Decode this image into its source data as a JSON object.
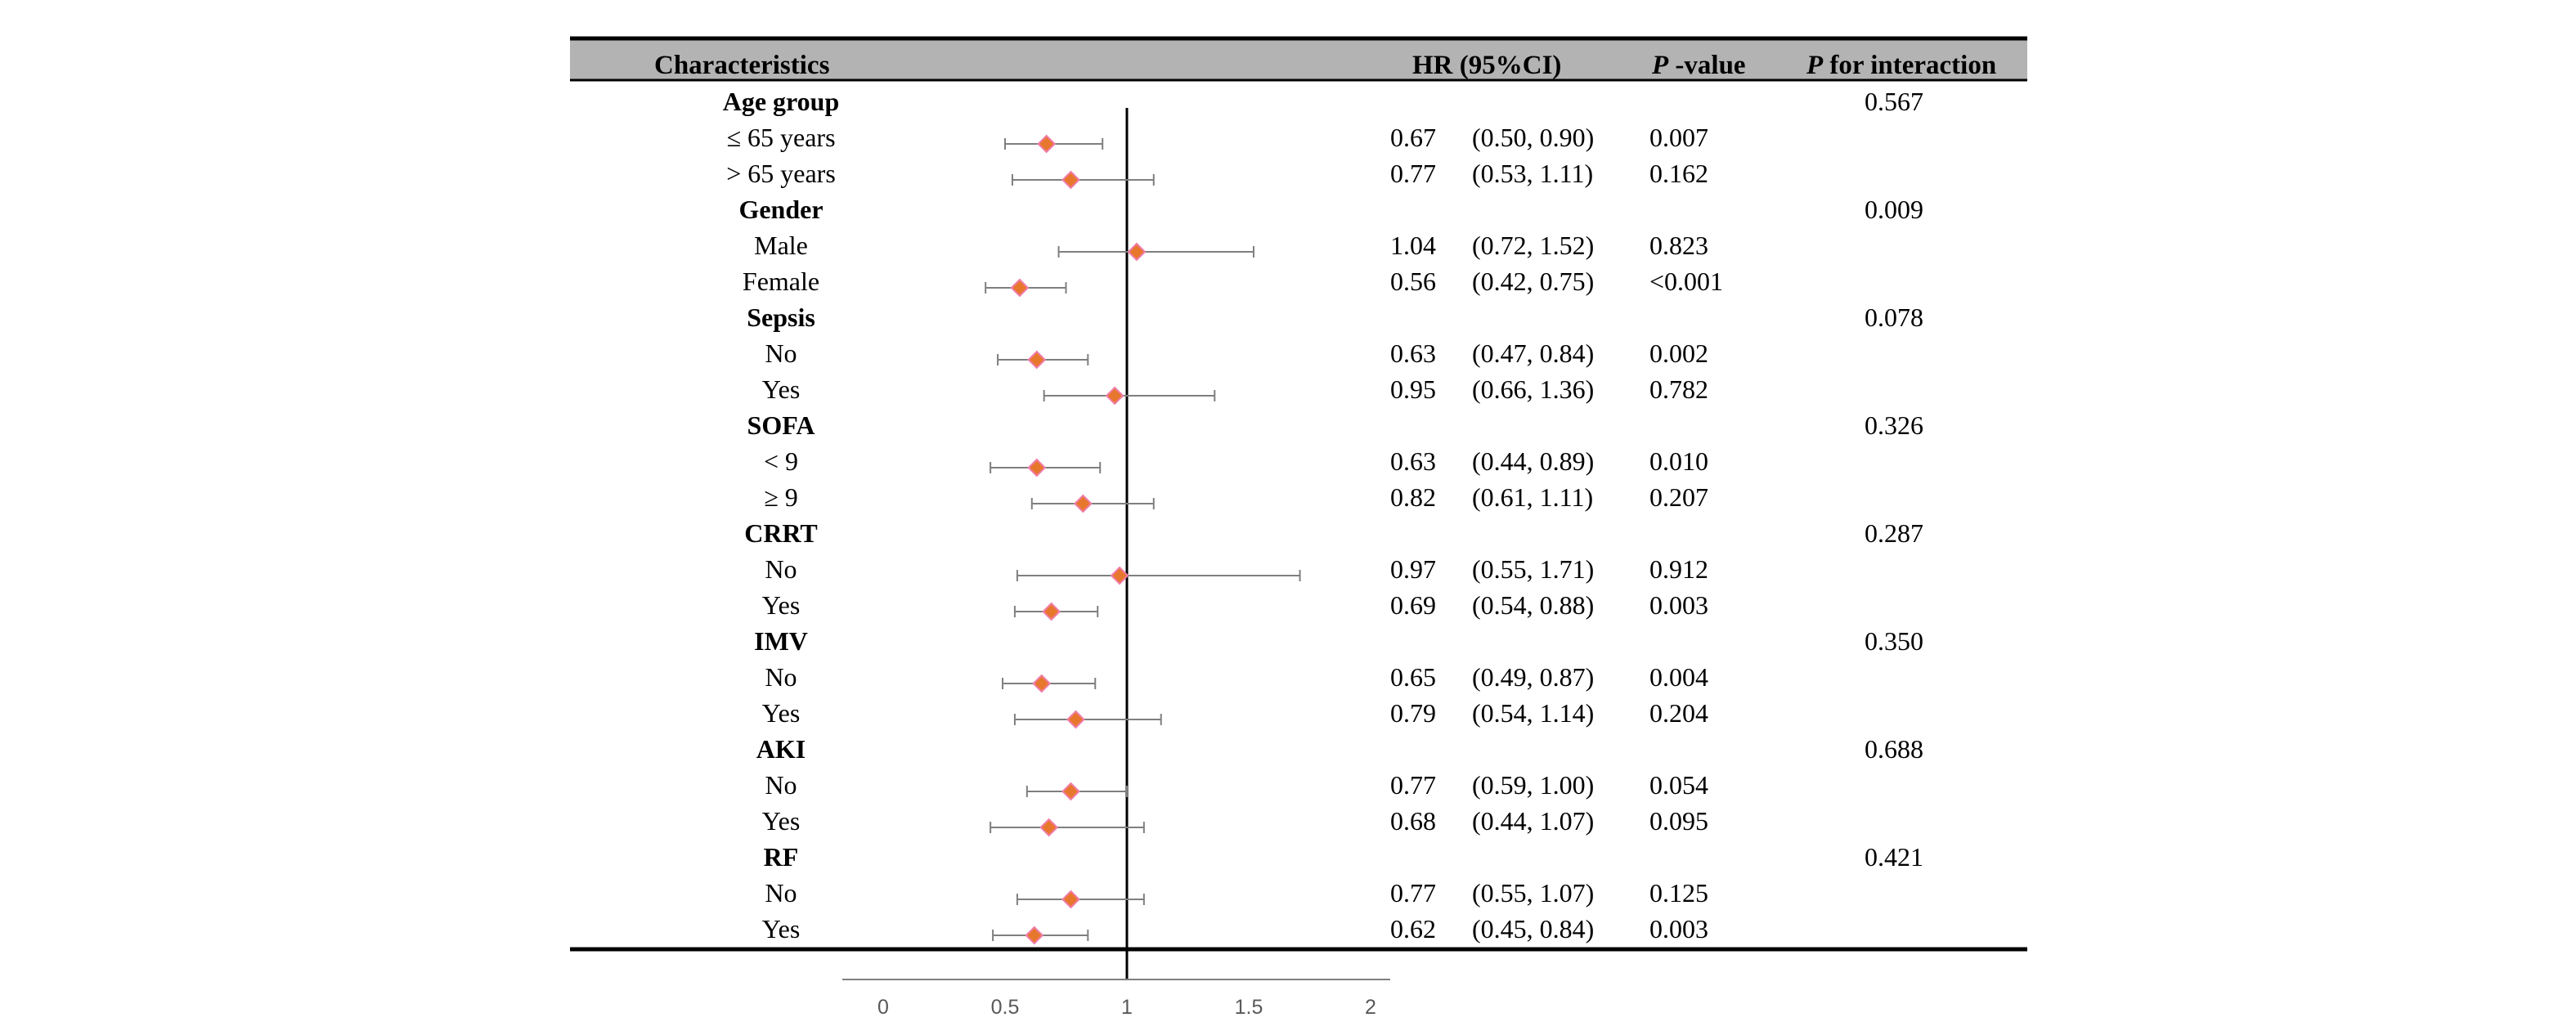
{
  "header": {
    "characteristics": "Characteristics",
    "hr": "HR (95%CI)",
    "pvalue_p": "P",
    "pvalue_rest": " -value",
    "interaction_p": "P",
    "interaction_rest": " for interaction"
  },
  "colors": {
    "header_band": "#b3b3b3",
    "marker_orange": "#e8772e",
    "marker_pink": "#f07ca8",
    "ci_line": "#7f7f7f",
    "reference_line": "#000000",
    "axis_line": "#7f7f7f"
  },
  "chart_data": {
    "type": "forest",
    "reference_value": 1,
    "x_ticks": [
      "0",
      "0.5",
      "1",
      "1.5",
      "2"
    ],
    "xlim": [
      0,
      2
    ],
    "rows": [
      {
        "kind": "group",
        "label": "Age group",
        "p_interaction": "0.567"
      },
      {
        "kind": "sub",
        "label": "≤ 65 years",
        "hr": 0.67,
        "lo": 0.5,
        "hi": 0.9,
        "hr_text": "0.67",
        "ci_text": "(0.50, 0.90)",
        "p": "0.007"
      },
      {
        "kind": "sub",
        "label": "> 65 years",
        "hr": 0.77,
        "lo": 0.53,
        "hi": 1.11,
        "hr_text": "0.77",
        "ci_text": "(0.53, 1.11)",
        "p": "0.162"
      },
      {
        "kind": "group",
        "label": "Gender",
        "p_interaction": "0.009"
      },
      {
        "kind": "sub",
        "label": "Male",
        "hr": 1.04,
        "lo": 0.72,
        "hi": 1.52,
        "hr_text": "1.04",
        "ci_text": "(0.72, 1.52)",
        "p": "0.823"
      },
      {
        "kind": "sub",
        "label": "Female",
        "hr": 0.56,
        "lo": 0.42,
        "hi": 0.75,
        "hr_text": "0.56",
        "ci_text": "(0.42, 0.75)",
        "p": "<0.001"
      },
      {
        "kind": "group",
        "label": "Sepsis",
        "p_interaction": "0.078"
      },
      {
        "kind": "sub",
        "label": "No",
        "hr": 0.63,
        "lo": 0.47,
        "hi": 0.84,
        "hr_text": "0.63",
        "ci_text": "(0.47, 0.84)",
        "p": "0.002"
      },
      {
        "kind": "sub",
        "label": "Yes",
        "hr": 0.95,
        "lo": 0.66,
        "hi": 1.36,
        "hr_text": "0.95",
        "ci_text": "(0.66, 1.36)",
        "p": "0.782"
      },
      {
        "kind": "group",
        "label": "SOFA",
        "p_interaction": "0.326"
      },
      {
        "kind": "sub",
        "label": "< 9",
        "hr": 0.63,
        "lo": 0.44,
        "hi": 0.89,
        "hr_text": "0.63",
        "ci_text": "(0.44, 0.89)",
        "p": "0.010"
      },
      {
        "kind": "sub",
        "label": "≥ 9",
        "hr": 0.82,
        "lo": 0.61,
        "hi": 1.11,
        "hr_text": "0.82",
        "ci_text": "(0.61, 1.11)",
        "p": "0.207"
      },
      {
        "kind": "group",
        "label": "CRRT",
        "p_interaction": "0.287"
      },
      {
        "kind": "sub",
        "label": "No",
        "hr": 0.97,
        "lo": 0.55,
        "hi": 1.71,
        "hr_text": "0.97",
        "ci_text": "(0.55, 1.71)",
        "p": "0.912"
      },
      {
        "kind": "sub",
        "label": "Yes",
        "hr": 0.69,
        "lo": 0.54,
        "hi": 0.88,
        "hr_text": "0.69",
        "ci_text": "(0.54, 0.88)",
        "p": "0.003"
      },
      {
        "kind": "group",
        "label": "IMV",
        "p_interaction": "0.350"
      },
      {
        "kind": "sub",
        "label": "No",
        "hr": 0.65,
        "lo": 0.49,
        "hi": 0.87,
        "hr_text": "0.65",
        "ci_text": "(0.49, 0.87)",
        "p": "0.004"
      },
      {
        "kind": "sub",
        "label": "Yes",
        "hr": 0.79,
        "lo": 0.54,
        "hi": 1.14,
        "hr_text": "0.79",
        "ci_text": "(0.54, 1.14)",
        "p": "0.204"
      },
      {
        "kind": "group",
        "label": "AKI",
        "p_interaction": "0.688"
      },
      {
        "kind": "sub",
        "label": "No",
        "hr": 0.77,
        "lo": 0.59,
        "hi": 1.0,
        "hr_text": "0.77",
        "ci_text": "(0.59, 1.00)",
        "p": "0.054"
      },
      {
        "kind": "sub",
        "label": "Yes",
        "hr": 0.68,
        "lo": 0.44,
        "hi": 1.07,
        "hr_text": "0.68",
        "ci_text": "(0.44, 1.07)",
        "p": "0.095"
      },
      {
        "kind": "group",
        "label": "RF",
        "p_interaction": "0.421"
      },
      {
        "kind": "sub",
        "label": "No",
        "hr": 0.77,
        "lo": 0.55,
        "hi": 1.07,
        "hr_text": "0.77",
        "ci_text": "(0.55, 1.07)",
        "p": "0.125"
      },
      {
        "kind": "sub",
        "label": "Yes",
        "hr": 0.62,
        "lo": 0.45,
        "hi": 0.84,
        "hr_text": "0.62",
        "ci_text": "(0.45, 0.84)",
        "p": "0.003"
      }
    ]
  }
}
